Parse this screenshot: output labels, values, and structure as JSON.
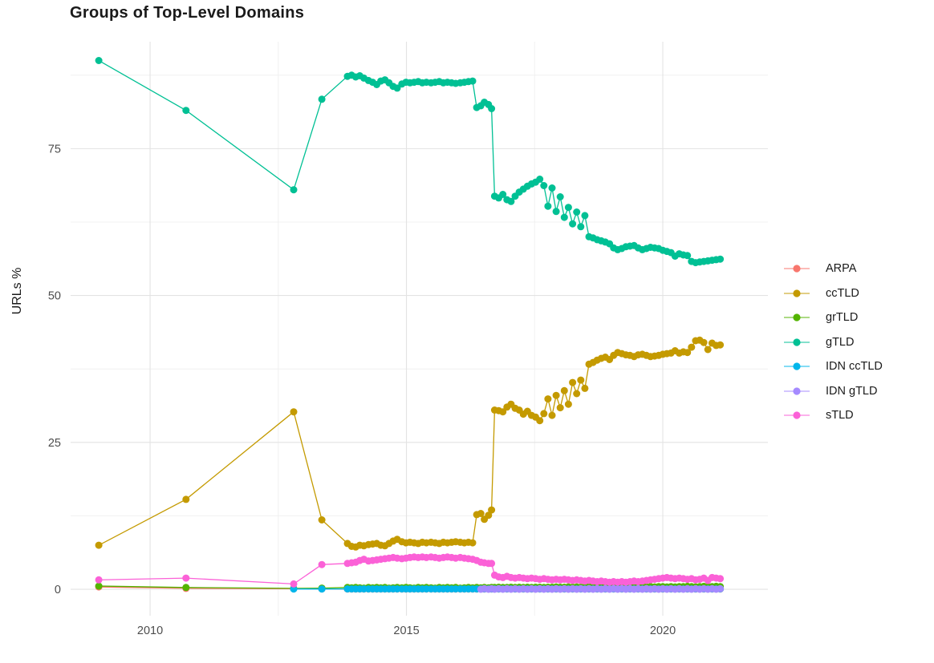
{
  "chart_data": {
    "type": "line",
    "title": "Groups of Top-Level Domains",
    "xlabel": "",
    "ylabel": "URLs %",
    "grid": true,
    "legend_position": "right",
    "x_ticks": [
      2010,
      2015,
      2020
    ],
    "x_tick_labels": [
      "2010",
      "2015",
      "2020"
    ],
    "y_ticks": [
      0,
      25,
      50,
      75
    ],
    "y_tick_labels": [
      "0",
      "25",
      "50",
      "75"
    ],
    "x_minor_ticks": [
      2012.5,
      2017.5
    ],
    "y_minor_ticks": [
      12.5,
      37.5,
      62.5,
      87.5
    ],
    "xlim": [
      2008.45,
      2022.05
    ],
    "ylim": [
      -4.5,
      93.2
    ],
    "grid_major_color": "#e3e3e3",
    "grid_minor_color": "#f0f0f0",
    "x": [
      2009.0,
      2010.7,
      2012.8,
      2013.35,
      2013.85,
      2013.93,
      2014.01,
      2014.09,
      2014.17,
      2014.26,
      2014.34,
      2014.42,
      2014.5,
      2014.58,
      2014.66,
      2014.74,
      2014.82,
      2014.91,
      2014.99,
      2015.07,
      2015.15,
      2015.23,
      2015.31,
      2015.39,
      2015.48,
      2015.56,
      2015.64,
      2015.72,
      2015.8,
      2015.88,
      2015.96,
      2016.05,
      2016.13,
      2016.21,
      2016.29,
      2016.37,
      2016.45,
      2016.52,
      2016.6,
      2016.66,
      2016.72,
      2016.8,
      2016.88,
      2016.96,
      2017.04,
      2017.12,
      2017.2,
      2017.28,
      2017.36,
      2017.44,
      2017.52,
      2017.6,
      2017.68,
      2017.76,
      2017.84,
      2017.92,
      2018.0,
      2018.08,
      2018.16,
      2018.24,
      2018.32,
      2018.4,
      2018.48,
      2018.56,
      2018.64,
      2018.72,
      2018.8,
      2018.88,
      2018.96,
      2019.04,
      2019.12,
      2019.2,
      2019.28,
      2019.36,
      2019.44,
      2019.52,
      2019.6,
      2019.68,
      2019.76,
      2019.84,
      2019.92,
      2020.0,
      2020.08,
      2020.16,
      2020.24,
      2020.32,
      2020.4,
      2020.48,
      2020.56,
      2020.64,
      2020.72,
      2020.8,
      2020.88,
      2020.96,
      2021.04,
      2021.12
    ],
    "series": [
      {
        "name": "ARPA",
        "color": "#F8766D",
        "values": [
          0.4,
          0.15,
          0.08,
          0.06,
          0.05,
          0.05,
          0.05,
          0.05,
          0.05,
          0.05,
          0.05,
          0.05,
          0.05,
          0.05,
          0.05,
          0.05,
          0.05,
          0.05,
          0.05,
          0.05,
          0.05,
          0.05,
          0.05,
          0.05,
          0.05,
          0.05,
          0.05,
          0.05,
          0.05,
          0.05,
          0.05,
          0.05,
          0.05,
          0.05,
          0.05,
          0.05,
          0.05,
          0.05,
          0.05,
          0.05,
          0.05,
          0.05,
          0.05,
          0.05,
          0.05,
          0.05,
          0.05,
          0.05,
          0.05,
          0.05,
          0.05,
          0.05,
          0.05,
          0.05,
          0.05,
          0.05,
          0.05,
          0.05,
          0.05,
          0.05,
          0.05,
          0.05,
          0.05,
          0.05,
          0.05,
          0.05,
          0.05,
          0.05,
          0.05,
          0.05,
          0.05,
          0.05,
          0.05,
          0.05,
          0.05,
          0.05,
          0.05,
          0.05,
          0.05,
          0.05,
          0.05,
          0.05,
          0.05,
          0.05,
          0.05,
          0.05,
          0.05,
          0.05,
          0.05,
          0.05,
          0.05,
          0.05,
          0.05,
          0.05,
          0.05,
          0.05
        ]
      },
      {
        "name": "ccTLD",
        "color": "#C49A00",
        "values": [
          7.5,
          15.3,
          30.2,
          11.8,
          7.8,
          7.3,
          7.2,
          7.5,
          7.4,
          7.6,
          7.7,
          7.8,
          7.5,
          7.4,
          7.8,
          8.2,
          8.5,
          8.1,
          7.9,
          8.0,
          7.9,
          7.8,
          8.0,
          7.9,
          8.0,
          7.9,
          7.8,
          8.0,
          7.9,
          8.0,
          8.1,
          8.0,
          7.9,
          8.0,
          7.9,
          12.7,
          12.9,
          11.9,
          12.6,
          13.5,
          30.5,
          30.4,
          30.2,
          31.0,
          31.5,
          30.8,
          30.5,
          29.8,
          30.3,
          29.6,
          29.3,
          28.7,
          29.9,
          32.4,
          29.6,
          33.0,
          30.9,
          33.8,
          31.5,
          35.2,
          33.3,
          35.6,
          34.2,
          38.3,
          38.6,
          39.0,
          39.3,
          39.5,
          39.1,
          39.8,
          40.3,
          40.1,
          39.9,
          39.8,
          39.6,
          39.9,
          40.0,
          39.8,
          39.6,
          39.7,
          39.8,
          40.0,
          40.1,
          40.2,
          40.6,
          40.2,
          40.4,
          40.3,
          41.2,
          42.3,
          42.4,
          42.0,
          40.8,
          41.9,
          41.5,
          41.6
        ]
      },
      {
        "name": "grTLD",
        "color": "#53B400",
        "values": [
          0.55,
          0.3,
          0.15,
          0.2,
          0.3,
          0.25,
          0.3,
          0.25,
          0.2,
          0.3,
          0.25,
          0.3,
          0.25,
          0.3,
          0.2,
          0.25,
          0.3,
          0.25,
          0.3,
          0.25,
          0.2,
          0.3,
          0.25,
          0.3,
          0.25,
          0.2,
          0.3,
          0.25,
          0.3,
          0.25,
          0.3,
          0.2,
          0.25,
          0.3,
          0.25,
          0.3,
          0.25,
          0.3,
          0.25,
          0.3,
          0.3,
          0.35,
          0.3,
          0.3,
          0.35,
          0.3,
          0.35,
          0.3,
          0.35,
          0.3,
          0.35,
          0.35,
          0.3,
          0.35,
          0.35,
          0.4,
          0.35,
          0.35,
          0.4,
          0.35,
          0.4,
          0.35,
          0.4,
          0.4,
          0.35,
          0.4,
          0.4,
          0.35,
          0.4,
          0.4,
          0.45,
          0.4,
          0.4,
          0.45,
          0.4,
          0.4,
          0.45,
          0.4,
          0.45,
          0.4,
          0.45,
          0.45,
          0.4,
          0.45,
          0.4,
          0.45,
          0.45,
          0.5,
          0.45,
          0.4,
          0.45,
          0.5,
          0.45,
          0.45,
          0.5,
          0.45
        ]
      },
      {
        "name": "gTLD",
        "color": "#00C094",
        "values": [
          90.0,
          81.5,
          68.0,
          83.4,
          87.3,
          87.5,
          87.2,
          87.4,
          87.0,
          86.6,
          86.3,
          85.9,
          86.5,
          86.7,
          86.2,
          85.6,
          85.3,
          86.0,
          86.3,
          86.2,
          86.3,
          86.4,
          86.2,
          86.3,
          86.2,
          86.3,
          86.4,
          86.2,
          86.3,
          86.2,
          86.1,
          86.2,
          86.3,
          86.4,
          86.5,
          82.0,
          82.3,
          82.9,
          82.5,
          81.8,
          66.9,
          66.6,
          67.2,
          66.3,
          66.0,
          66.9,
          67.6,
          68.1,
          68.6,
          69.0,
          69.3,
          69.8,
          68.7,
          65.2,
          68.3,
          64.3,
          66.8,
          63.3,
          65.0,
          62.2,
          64.2,
          61.7,
          63.6,
          60.0,
          59.8,
          59.5,
          59.3,
          59.1,
          58.8,
          58.1,
          57.8,
          58.0,
          58.3,
          58.4,
          58.5,
          58.1,
          57.8,
          58.0,
          58.2,
          58.1,
          58.0,
          57.7,
          57.5,
          57.3,
          56.7,
          57.1,
          56.9,
          56.8,
          55.8,
          55.6,
          55.7,
          55.8,
          55.9,
          56.0,
          56.1,
          56.2
        ]
      },
      {
        "name": "IDN ccTLD",
        "color": "#00B6EB",
        "values": [
          null,
          null,
          0.04,
          0.04,
          0.06,
          0.06,
          0.06,
          0.06,
          0.06,
          0.06,
          0.06,
          0.06,
          0.06,
          0.06,
          0.06,
          0.06,
          0.06,
          0.06,
          0.06,
          0.06,
          0.06,
          0.06,
          0.06,
          0.06,
          0.06,
          0.06,
          0.06,
          0.06,
          0.06,
          0.06,
          0.06,
          0.06,
          0.06,
          0.06,
          0.06,
          0.06,
          0.06,
          0.06,
          0.06,
          0.06,
          0.06,
          0.06,
          0.06,
          0.06,
          0.06,
          0.06,
          0.06,
          0.06,
          0.06,
          0.06,
          0.06,
          0.06,
          0.06,
          0.06,
          0.06,
          0.06,
          0.06,
          0.06,
          0.06,
          0.06,
          0.06,
          0.06,
          0.06,
          0.06,
          0.06,
          0.06,
          0.06,
          0.06,
          0.06,
          0.06,
          0.06,
          0.06,
          0.06,
          0.06,
          0.06,
          0.06,
          0.06,
          0.06,
          0.06,
          0.06,
          0.06,
          0.06,
          0.06,
          0.06,
          0.06,
          0.06,
          0.06,
          0.06,
          0.06,
          0.06,
          0.06,
          0.06,
          0.06,
          0.06,
          0.06,
          0.06
        ]
      },
      {
        "name": "IDN gTLD",
        "color": "#A58AFF",
        "values": [
          null,
          null,
          null,
          null,
          null,
          null,
          null,
          null,
          null,
          null,
          null,
          null,
          null,
          null,
          null,
          null,
          null,
          null,
          null,
          null,
          null,
          null,
          null,
          null,
          null,
          null,
          null,
          null,
          null,
          null,
          null,
          null,
          null,
          null,
          null,
          null,
          0.0,
          0.1,
          0.0,
          0.1,
          0.0,
          0.1,
          0.0,
          0.1,
          0.0,
          0.1,
          0.0,
          0.1,
          0.0,
          0.1,
          0.0,
          0.1,
          0.0,
          0.1,
          0.0,
          0.1,
          0.0,
          0.1,
          0.0,
          0.1,
          0.0,
          0.1,
          0.0,
          0.1,
          0.0,
          0.1,
          0.0,
          0.1,
          0.0,
          0.1,
          0.0,
          0.1,
          0.0,
          0.1,
          0.0,
          0.1,
          0.0,
          0.1,
          0.0,
          0.1,
          0.0,
          0.1,
          0.0,
          0.1,
          0.0,
          0.1,
          0.0,
          0.1,
          0.0,
          0.1,
          0.0,
          0.1,
          0.0,
          0.1,
          0.0,
          0.1
        ]
      },
      {
        "name": "sTLD",
        "color": "#FB61D7",
        "values": [
          1.6,
          1.9,
          0.9,
          4.2,
          4.4,
          4.5,
          4.6,
          4.9,
          5.1,
          4.8,
          4.9,
          5.0,
          5.1,
          5.2,
          5.3,
          5.4,
          5.3,
          5.2,
          5.3,
          5.4,
          5.5,
          5.4,
          5.5,
          5.4,
          5.5,
          5.4,
          5.3,
          5.4,
          5.5,
          5.4,
          5.3,
          5.4,
          5.3,
          5.2,
          5.1,
          4.9,
          4.6,
          4.5,
          4.4,
          4.4,
          2.4,
          2.1,
          2.0,
          2.2,
          2.0,
          1.9,
          2.0,
          1.9,
          1.8,
          1.9,
          1.8,
          1.7,
          1.8,
          1.7,
          1.6,
          1.7,
          1.6,
          1.7,
          1.6,
          1.5,
          1.6,
          1.5,
          1.4,
          1.5,
          1.4,
          1.3,
          1.4,
          1.3,
          1.2,
          1.3,
          1.2,
          1.3,
          1.2,
          1.3,
          1.4,
          1.3,
          1.4,
          1.5,
          1.6,
          1.7,
          1.8,
          1.9,
          2.0,
          1.9,
          1.8,
          1.9,
          1.8,
          1.7,
          1.8,
          1.6,
          1.7,
          1.9,
          1.5,
          2.0,
          1.9,
          1.8
        ]
      }
    ]
  }
}
